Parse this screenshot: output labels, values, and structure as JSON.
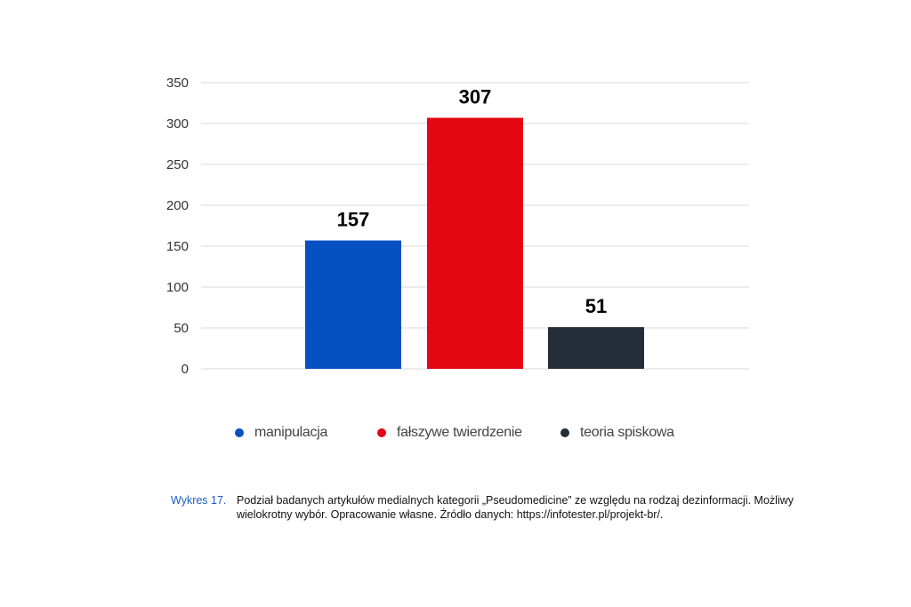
{
  "chart_data": {
    "type": "bar",
    "categories": [
      "manipulacja",
      "fałszywe twierdzenie",
      "teoria spiskowa"
    ],
    "values": [
      157,
      307,
      51
    ],
    "colors": [
      "#0650c1",
      "#e30613",
      "#232e38"
    ],
    "ylim": [
      0,
      350
    ],
    "yticks": [
      0,
      50,
      100,
      150,
      200,
      250,
      300,
      350
    ],
    "grid": true,
    "legend_position": "bottom",
    "title": "",
    "xlabel": "",
    "ylabel": ""
  },
  "legend": {
    "items": [
      {
        "label": "manipulacja",
        "color": "#0650c1"
      },
      {
        "label": "fałszywe twierdzenie",
        "color": "#e30613"
      },
      {
        "label": "teoria spiskowa",
        "color": "#232e38"
      }
    ]
  },
  "caption": {
    "number": "Wykres 17.",
    "text": "Podział badanych artykułów medialnych kategorii „Pseudomedicine” ze względu na rodzaj dezinformacji. Możliwy wielokrotny wybór. Opracowanie własne. Źródło danych: https://infotester.pl/projekt-br/."
  }
}
